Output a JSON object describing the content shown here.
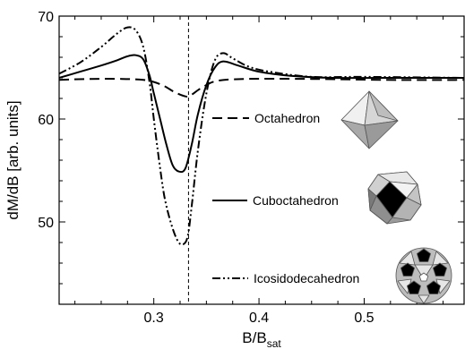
{
  "chart_data": {
    "type": "line",
    "title": "",
    "xlabel": "B/B",
    "xlabel_sub": "sat",
    "ylabel": "dM/dB [arb. units]",
    "xlim": [
      0.21,
      0.595
    ],
    "ylim": [
      42,
      70
    ],
    "x_ticks": [
      0.3,
      0.4,
      0.5
    ],
    "x_tick_labels": [
      "0.3",
      "0.4",
      "0.5"
    ],
    "y_ticks": [
      50,
      60,
      70
    ],
    "y_tick_labels": [
      "50",
      "60",
      "70"
    ],
    "grid": false,
    "legend_placement": "right",
    "reference_line_x": 0.333,
    "series": [
      {
        "name": "Octahedron",
        "dash": "dashed",
        "icon": "octahedron-icon",
        "x": [
          0.21,
          0.24,
          0.27,
          0.29,
          0.3,
          0.31,
          0.32,
          0.33,
          0.335,
          0.345,
          0.36,
          0.39,
          0.45,
          0.52,
          0.595
        ],
        "y": [
          63.8,
          63.9,
          63.9,
          63.8,
          63.6,
          63.2,
          62.6,
          62.2,
          62.3,
          63.0,
          63.7,
          63.9,
          63.9,
          63.8,
          63.8
        ]
      },
      {
        "name": "Cuboctahedron",
        "dash": "solid",
        "icon": "cuboctahedron-icon",
        "x": [
          0.21,
          0.23,
          0.25,
          0.265,
          0.275,
          0.283,
          0.29,
          0.296,
          0.3,
          0.306,
          0.312,
          0.318,
          0.324,
          0.33,
          0.336,
          0.342,
          0.35,
          0.358,
          0.366,
          0.38,
          0.4,
          0.43,
          0.47,
          0.52,
          0.595
        ],
        "y": [
          64.0,
          64.6,
          65.2,
          65.7,
          66.1,
          66.2,
          65.8,
          64.2,
          62.5,
          60.0,
          57.5,
          55.5,
          54.9,
          55.2,
          57.5,
          60.5,
          63.3,
          65.0,
          65.6,
          65.2,
          64.6,
          64.2,
          64.0,
          64.0,
          64.0
        ]
      },
      {
        "name": "Icosidodecahedron",
        "dash": "dash-dot-dot",
        "icon": "icosidodecahedron-icon",
        "x": [
          0.21,
          0.23,
          0.25,
          0.265,
          0.275,
          0.283,
          0.29,
          0.296,
          0.3,
          0.305,
          0.31,
          0.316,
          0.322,
          0.327,
          0.332,
          0.336,
          0.342,
          0.35,
          0.358,
          0.366,
          0.375,
          0.39,
          0.41,
          0.45,
          0.5,
          0.595
        ],
        "y": [
          64.4,
          65.5,
          67.0,
          68.3,
          68.9,
          68.6,
          67.0,
          63.5,
          60.0,
          56.0,
          52.5,
          50.0,
          48.3,
          47.8,
          48.5,
          51.5,
          57.0,
          62.5,
          65.7,
          66.4,
          65.9,
          65.1,
          64.6,
          64.1,
          64.1,
          64.0
        ]
      }
    ]
  }
}
